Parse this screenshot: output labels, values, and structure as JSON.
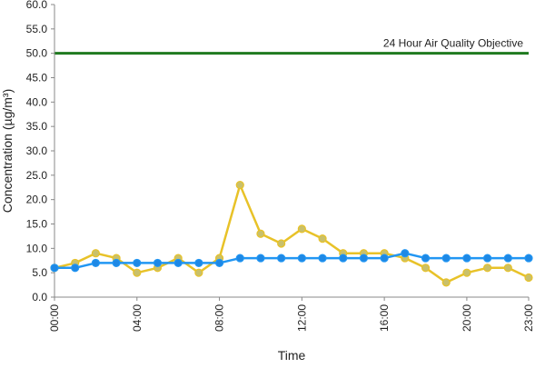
{
  "chart_data": {
    "type": "line",
    "title": "",
    "xlabel": "Time",
    "ylabel": "Concentration (µg/m³)",
    "ylim": [
      0,
      60
    ],
    "yticks": [
      "0.0",
      "5.0",
      "10.0",
      "15.0",
      "20.0",
      "25.0",
      "30.0",
      "35.0",
      "40.0",
      "45.0",
      "50.0",
      "55.0",
      "60.0"
    ],
    "xlim": [
      0,
      23
    ],
    "xticks": [
      {
        "x": 0,
        "label": "00:00"
      },
      {
        "x": 4,
        "label": "04:00"
      },
      {
        "x": 8,
        "label": "08:00"
      },
      {
        "x": 12,
        "label": "12:00"
      },
      {
        "x": 16,
        "label": "16:00"
      },
      {
        "x": 20,
        "label": "20:00"
      },
      {
        "x": 23,
        "label": "23:00"
      }
    ],
    "grid": false,
    "legend": "none",
    "x": [
      0,
      1,
      2,
      3,
      4,
      5,
      6,
      7,
      8,
      9,
      10,
      11,
      12,
      13,
      14,
      15,
      16,
      17,
      18,
      19,
      20,
      21,
      22,
      23
    ],
    "series": [
      {
        "color": "#e8c228",
        "marker_color": "#c9c06a",
        "values": [
          6,
          7,
          9,
          8,
          5,
          6,
          8,
          5,
          8,
          23,
          13,
          11,
          14,
          12,
          9,
          9,
          9,
          8,
          6,
          3,
          5,
          6,
          6,
          4
        ]
      },
      {
        "color": "#2196f3",
        "marker_color": "#1e88e5",
        "values": [
          6,
          6,
          7,
          7,
          7,
          7,
          7,
          7,
          7,
          8,
          8,
          8,
          8,
          8,
          8,
          8,
          8,
          9,
          8,
          8,
          8,
          8,
          8,
          8
        ]
      }
    ],
    "reference_line": {
      "value": 50,
      "label": "24 Hour Air Quality Objective",
      "color": "#1f7a1f"
    }
  }
}
